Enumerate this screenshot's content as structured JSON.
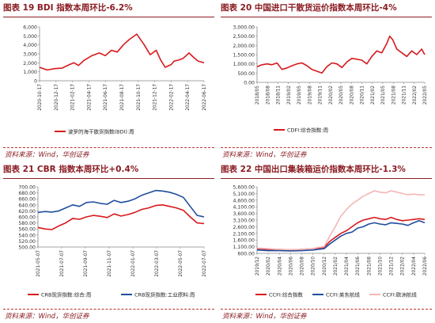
{
  "panels": [
    {
      "title": "图表 19   BDI 指数本周环比-6.2%",
      "source": "资料来源：Wind，华创证券"
    },
    {
      "title": "图表 20   中国进口干散货运价指数本周环比-4%",
      "source": "资料来源：Wind，华创证券"
    },
    {
      "title": "图表 21   CBR 指数本周环比+0.4%",
      "source": "资料来源：Wind，华创证券"
    },
    {
      "title": "图表 22   中国出口集装箱运价指数本周环比-1.3%",
      "source": "资料来源：Wind，华创证券"
    }
  ],
  "chart_data": [
    {
      "type": "line",
      "ylim": [
        0,
        6000
      ],
      "y_ticks": [
        "0",
        "1,000",
        "2,000",
        "3,000",
        "4,000",
        "5,000",
        "6,000"
      ],
      "y_tick_values": [
        0,
        1000,
        2000,
        3000,
        4000,
        5000,
        6000
      ],
      "x_ticks": [
        "2020-10-17",
        "2020-12-17",
        "2021-02-17",
        "2021-04-17",
        "2021-06-17",
        "2021-08-17",
        "2021-10-17",
        "2021-12-17",
        "2022-02-17",
        "2022-04-17",
        "2022-06-17"
      ],
      "legend_position": "bottom",
      "grid": false,
      "x": [
        0,
        0.5,
        1,
        1.5,
        2,
        2.3,
        2.6,
        3,
        3.5,
        4,
        4.4,
        4.8,
        5.2,
        5.6,
        6,
        6.5,
        7,
        7.4,
        7.8,
        8.1,
        8.4,
        8.8,
        9,
        9.3,
        9.6,
        10,
        10.3,
        10.6,
        11
      ],
      "series": [
        {
          "name": "波罗的海干散货指数(BDI):周",
          "color": "#d7191c",
          "values": [
            1500,
            1200,
            1350,
            1400,
            1800,
            2000,
            1700,
            2300,
            2800,
            3100,
            2800,
            3400,
            3200,
            4000,
            4600,
            5200,
            4000,
            2900,
            3400,
            2300,
            1500,
            1800,
            2200,
            2300,
            2500,
            3100,
            2600,
            2200,
            2000
          ]
        }
      ]
    },
    {
      "type": "line",
      "ylim": [
        0,
        3000
      ],
      "y_ticks": [
        "0.00",
        "500.00",
        "1,000.00",
        "1,500.00",
        "2,000.00",
        "2,500.00",
        "3,000.00"
      ],
      "y_tick_values": [
        0,
        500,
        1000,
        1500,
        2000,
        2500,
        3000
      ],
      "x_ticks": [
        "2018/05",
        "2018/08",
        "2018/11",
        "2019/02",
        "2019/05",
        "2019/08",
        "2019/11",
        "2020/02",
        "2020/05",
        "2020/08",
        "2020/11",
        "2021/02",
        "2021/05",
        "2021/08",
        "2021/11",
        "2022/02",
        "2022/05"
      ],
      "legend_position": "bottom",
      "grid": false,
      "x": [
        0,
        0.5,
        1,
        1.5,
        2,
        2.5,
        3,
        3.5,
        4,
        4.5,
        5,
        5.5,
        6,
        6.5,
        7,
        7.5,
        8,
        8.5,
        9,
        9.5,
        10,
        10.5,
        11,
        11.5,
        12,
        12.5,
        13,
        13.3,
        13.6,
        14,
        14.5,
        15,
        15.5,
        16,
        16.5,
        16.8
      ],
      "series": [
        {
          "name": "CDFI:综合指数:周",
          "color": "#d7191c",
          "values": [
            850,
            950,
            1000,
            950,
            1050,
            700,
            780,
            900,
            1000,
            1050,
            900,
            700,
            600,
            500,
            850,
            1050,
            1000,
            800,
            1100,
            1300,
            1250,
            1200,
            1000,
            1400,
            1700,
            1600,
            2100,
            2500,
            2300,
            1800,
            1600,
            1400,
            1700,
            1500,
            1800,
            1500
          ]
        }
      ]
    },
    {
      "type": "line",
      "ylim": [
        500,
        700
      ],
      "y_ticks": [
        "500.00",
        "520.00",
        "540.00",
        "560.00",
        "580.00",
        "600.00",
        "620.00",
        "640.00",
        "660.00",
        "680.00",
        "700.00"
      ],
      "y_tick_values": [
        500,
        520,
        540,
        560,
        580,
        600,
        620,
        640,
        660,
        680,
        700
      ],
      "x_ticks": [
        "2021-05-07",
        "2021-07-07",
        "2021-09-07",
        "2021-11-07",
        "2022-01-07",
        "2022-03-07",
        "2022-05-07",
        "2022-07-07"
      ],
      "legend_position": "bottom",
      "grid": false,
      "x": [
        0,
        0.5,
        1,
        1.5,
        2,
        2.5,
        3,
        3.5,
        4,
        4.5,
        5,
        5.5,
        6,
        6.5,
        7,
        7.5,
        8,
        8.5,
        9,
        9.5,
        10,
        10.5,
        11,
        11.5,
        12
      ],
      "series": [
        {
          "name": "CRB现货指数:综合:周",
          "color": "#d7191c",
          "values": [
            565,
            560,
            558,
            570,
            580,
            595,
            592,
            600,
            605,
            602,
            598,
            610,
            603,
            608,
            615,
            625,
            630,
            638,
            640,
            635,
            630,
            622,
            600,
            580,
            578
          ]
        },
        {
          "name": "CRB现货指数:工业原料:周",
          "color": "#1f4e9e",
          "values": [
            615,
            618,
            616,
            620,
            630,
            640,
            635,
            648,
            650,
            645,
            642,
            655,
            648,
            652,
            660,
            672,
            680,
            688,
            686,
            682,
            675,
            665,
            635,
            605,
            600
          ]
        }
      ]
    },
    {
      "type": "line",
      "ylim": [
        600,
        5600
      ],
      "y_ticks": [
        "600.00",
        "1,100.00",
        "1,600.00",
        "2,100.00",
        "2,600.00",
        "3,100.00",
        "3,600.00",
        "4,100.00",
        "4,600.00",
        "5,100.00",
        "5,600.00"
      ],
      "y_tick_values": [
        600,
        1100,
        1600,
        2100,
        2600,
        3100,
        3600,
        4100,
        4600,
        5100,
        5600
      ],
      "x_ticks": [
        "2019/12",
        "2020/02",
        "2020/04",
        "2020/06",
        "2020/08",
        "2020/10",
        "2020/12",
        "2021/02",
        "2021/04",
        "2021/06",
        "2021/08",
        "2021/10",
        "2021/12",
        "2022/02",
        "2022/04",
        "2022/06"
      ],
      "legend_position": "bottom",
      "grid": false,
      "x": [
        0,
        1,
        2,
        3,
        4,
        5,
        5.5,
        6,
        6.5,
        7,
        7.5,
        8,
        8.5,
        9,
        9.5,
        10,
        10.5,
        11,
        11.5,
        12,
        12.5,
        13,
        13.5,
        14,
        14.5,
        15
      ],
      "series": [
        {
          "name": "CCFI:综合指数",
          "color": "#d7191c",
          "values": [
            950,
            900,
            900,
            850,
            900,
            950,
            1000,
            1050,
            1500,
            1800,
            2100,
            2300,
            2600,
            2900,
            3100,
            3200,
            3300,
            3200,
            3150,
            3300,
            3150,
            3050,
            3100,
            3150,
            3200,
            3150
          ]
        },
        {
          "name": "CCFI:美东航线",
          "color": "#1f4e9e",
          "values": [
            850,
            800,
            800,
            780,
            800,
            850,
            900,
            950,
            1300,
            1600,
            1900,
            2100,
            2200,
            2500,
            2600,
            2800,
            2900,
            2800,
            2750,
            2900,
            2850,
            2800,
            2700,
            2900,
            3050,
            2900
          ]
        },
        {
          "name": "CCFI:欧洲航线",
          "color": "#f4b6b6",
          "values": [
            1000,
            950,
            900,
            880,
            900,
            950,
            1050,
            1100,
            1900,
            2600,
            3400,
            3900,
            4300,
            4600,
            4900,
            5100,
            5300,
            5200,
            5150,
            5300,
            5200,
            5100,
            5000,
            5050,
            5000,
            5000
          ]
        }
      ]
    }
  ]
}
